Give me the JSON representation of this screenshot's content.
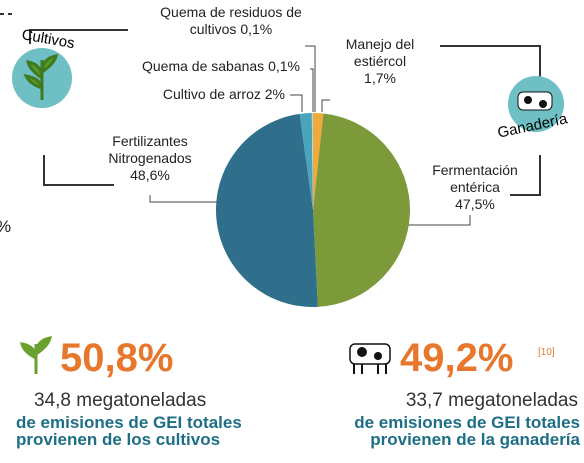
{
  "chart_data": {
    "type": "pie",
    "categories": [
      "Manejo del estiércol",
      "Fermentación entérica",
      "Fertilizantes Nitrogenados",
      "Cultivo de arroz",
      "Quema de sabanas",
      "Quema de residuos de cultivos"
    ],
    "values": [
      1.7,
      47.5,
      48.6,
      2,
      0.1,
      0.1
    ],
    "value_labels": [
      "1,7%",
      "47,5%",
      "48,6%",
      "2%",
      "0,1%",
      "0,1%"
    ],
    "colors": [
      "#f2a93b",
      "#7d9a3b",
      "#2f6f8c",
      "#4aa4bb",
      "#8fc6d4",
      "#c9e3ea"
    ]
  },
  "icons": {
    "left": "Cultivos",
    "right": "Ganadería"
  },
  "edge_text": "%",
  "panels": [
    {
      "percent": "50,8%",
      "amount": "34,8 megatoneladas",
      "line1": "de emisiones de GEI totales",
      "line2": "provienen de los cultivos"
    },
    {
      "percent": "49,2%",
      "ref": "[10]",
      "amount": "33,7 megatoneladas",
      "line1": "de emisiones de GEI totales",
      "line2": "provienen de la ganadería"
    }
  ]
}
